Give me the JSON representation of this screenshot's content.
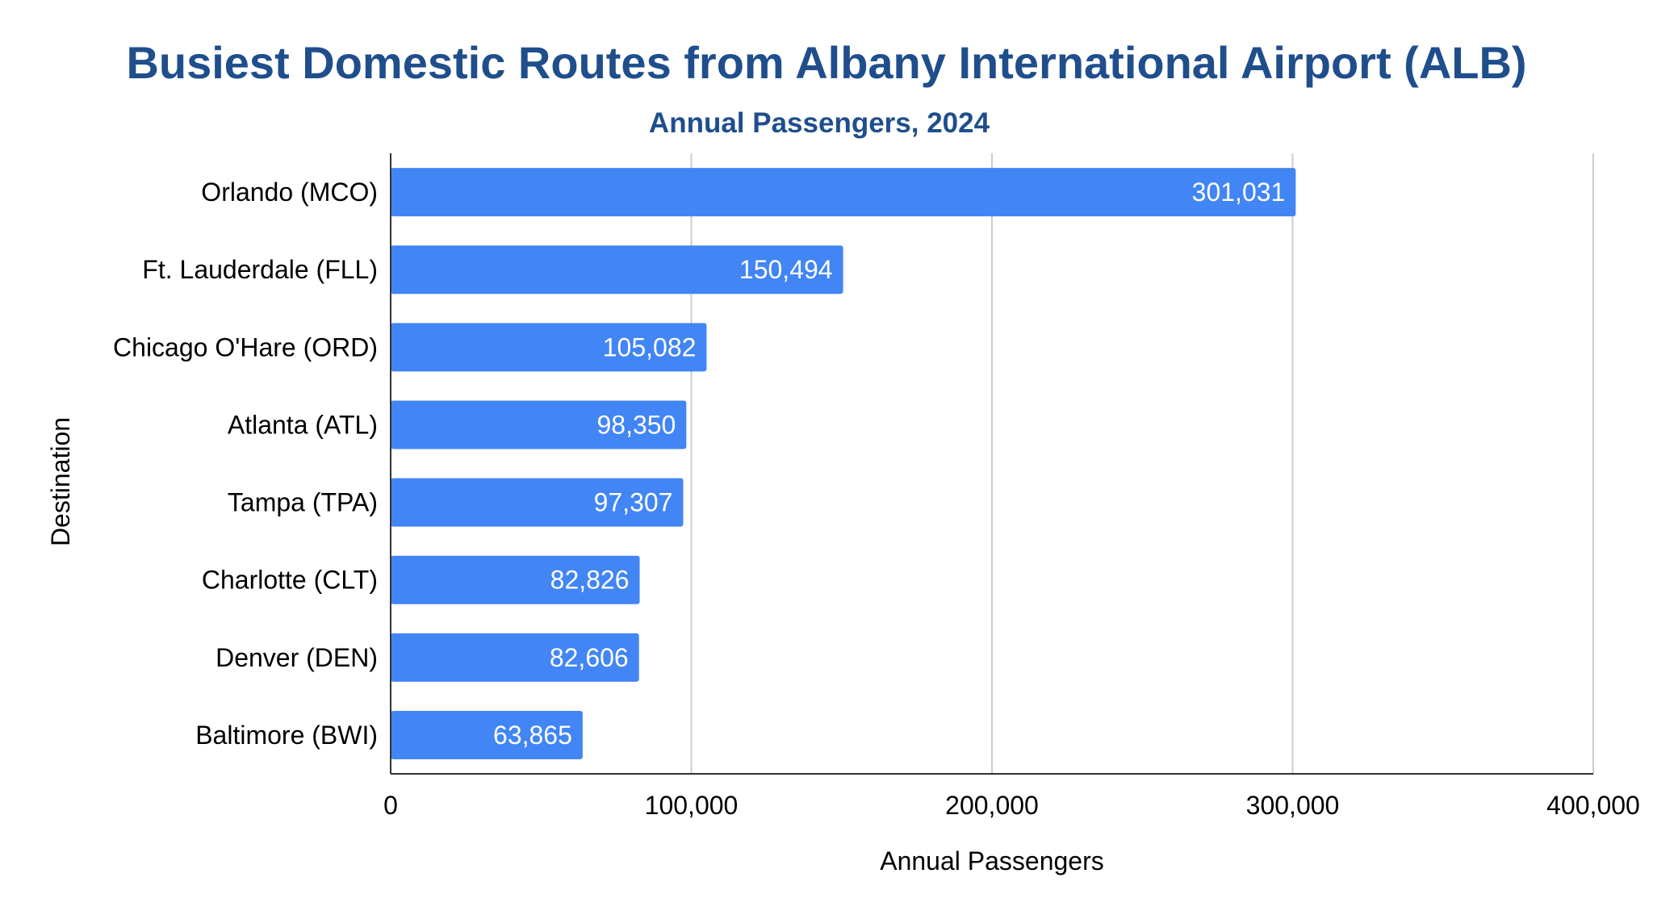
{
  "chart_data": {
    "type": "bar",
    "orientation": "horizontal",
    "title": "Busiest Domestic Routes from Albany International Airport (ALB)",
    "subtitle": "Annual Passengers, 2024",
    "xlabel": "Annual Passengers",
    "ylabel": "Destination",
    "categories": [
      "Orlando (MCO)",
      "Ft. Lauderdale (FLL)",
      "Chicago O'Hare (ORD)",
      "Atlanta (ATL)",
      "Tampa (TPA)",
      "Charlotte (CLT)",
      "Denver (DEN)",
      "Baltimore (BWI)"
    ],
    "values": [
      301031,
      150494,
      105082,
      98350,
      97307,
      82826,
      82606,
      63865
    ],
    "value_labels": [
      "301,031",
      "150,494",
      "105,082",
      "98,350",
      "97,307",
      "82,826",
      "82,606",
      "63,865"
    ],
    "xlim": [
      0,
      400000
    ],
    "xticks": [
      0,
      100000,
      200000,
      300000,
      400000
    ],
    "xtick_labels": [
      "0",
      "100,000",
      "200,000",
      "300,000",
      "400,000"
    ],
    "grid": "vertical",
    "legend": "none",
    "colors": {
      "bar": "#4285f4",
      "title": "#1f4e8c",
      "grid": "#cccccc",
      "axis": "#333333",
      "text": "#000000",
      "data_label": "#ffffff"
    }
  }
}
